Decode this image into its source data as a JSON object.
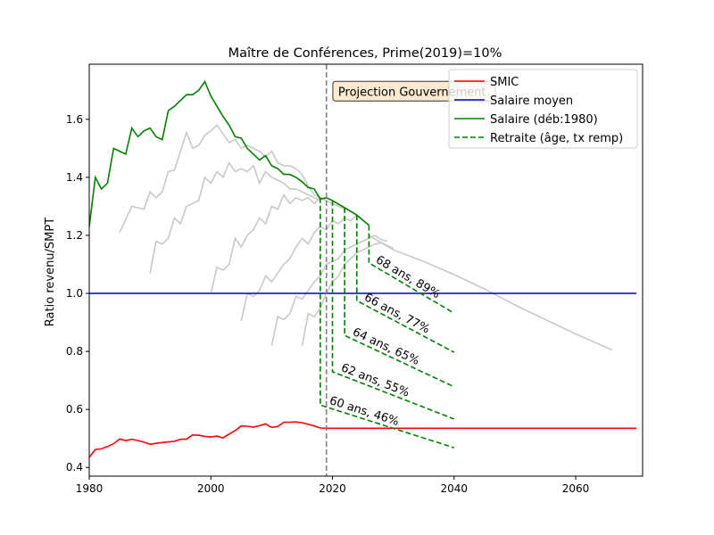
{
  "chart_data": {
    "type": "line",
    "title": "Maître de Conférences, Prime(2019)=10%",
    "xlabel": "",
    "ylabel": "Ratio revenu/SMPT",
    "xlim": [
      1980,
      2071
    ],
    "ylim": [
      0.37,
      1.79
    ],
    "xticks": [
      1980,
      2000,
      2020,
      2040,
      2060
    ],
    "yticks": [
      0.4,
      0.6,
      0.8,
      1.0,
      1.2,
      1.4,
      1.6
    ],
    "grid": false,
    "legend_position": "top-right",
    "annotation": {
      "text": "Projection Gouvernement",
      "x": 2020.5,
      "y": 1.7
    },
    "vline": {
      "x": 2019,
      "color": "#808080"
    },
    "colors": {
      "smic": "#ff0000",
      "salaire_moyen": "#0000bf",
      "salaire": "#008000",
      "retraite": "#008000",
      "cohorts": "#c8c8c8"
    },
    "series": [
      {
        "name": "SMIC",
        "style": "solid",
        "color": "#ff0000",
        "x": [
          1980,
          1981,
          1982,
          1983,
          1984,
          1985,
          1986,
          1987,
          1988,
          1989,
          1990,
          1991,
          1992,
          1993,
          1994,
          1995,
          1996,
          1997,
          1998,
          1999,
          2000,
          2001,
          2002,
          2003,
          2004,
          2005,
          2006,
          2007,
          2008,
          2009,
          2010,
          2011,
          2012,
          2013,
          2014,
          2015,
          2016,
          2017,
          2018,
          2019,
          2020,
          2030,
          2040,
          2050,
          2060,
          2070
        ],
        "y": [
          0.435,
          0.462,
          0.464,
          0.472,
          0.482,
          0.498,
          0.493,
          0.497,
          0.493,
          0.487,
          0.48,
          0.483,
          0.486,
          0.488,
          0.49,
          0.497,
          0.498,
          0.512,
          0.511,
          0.507,
          0.505,
          0.508,
          0.502,
          0.515,
          0.527,
          0.543,
          0.542,
          0.539,
          0.544,
          0.55,
          0.538,
          0.541,
          0.556,
          0.556,
          0.557,
          0.554,
          0.549,
          0.543,
          0.536,
          0.535,
          0.535,
          0.535,
          0.535,
          0.535,
          0.535,
          0.535
        ]
      },
      {
        "name": "Salaire moyen",
        "style": "solid",
        "color": "#0000bf",
        "x": [
          1980,
          2070
        ],
        "y": [
          1.0,
          1.0
        ]
      },
      {
        "name": "Salaire (déb:1980)",
        "style": "solid",
        "color": "#008000",
        "x": [
          1980,
          1981,
          1982,
          1983,
          1984,
          1985,
          1986,
          1987,
          1988,
          1989,
          1990,
          1991,
          1992,
          1993,
          1994,
          1995,
          1996,
          1997,
          1998,
          1999,
          2000,
          2001,
          2002,
          2003,
          2004,
          2005,
          2006,
          2007,
          2008,
          2009,
          2010,
          2011,
          2012,
          2013,
          2014,
          2015,
          2016,
          2017,
          2018,
          2019,
          2020,
          2022,
          2024,
          2026
        ],
        "y": [
          1.23,
          1.4,
          1.36,
          1.38,
          1.5,
          1.49,
          1.48,
          1.57,
          1.54,
          1.56,
          1.57,
          1.54,
          1.53,
          1.63,
          1.645,
          1.665,
          1.685,
          1.685,
          1.7,
          1.73,
          1.68,
          1.645,
          1.61,
          1.58,
          1.54,
          1.535,
          1.5,
          1.48,
          1.46,
          1.475,
          1.44,
          1.43,
          1.41,
          1.41,
          1.4,
          1.385,
          1.365,
          1.36,
          1.325,
          1.33,
          1.32,
          1.295,
          1.27,
          1.235
        ]
      },
      {
        "name": "Retraite (âge, tx remp)",
        "style": "dashed",
        "color": "#008000",
        "x": [],
        "y": []
      }
    ],
    "retirement_lines": [
      {
        "label": "60 ans, 46%",
        "x": [
          2018,
          2018,
          2040
        ],
        "y": [
          1.33,
          0.615,
          0.468
        ]
      },
      {
        "label": "62 ans, 55%",
        "x": [
          2020,
          2020,
          2040
        ],
        "y": [
          1.32,
          0.73,
          0.567
        ]
      },
      {
        "label": "64 ans, 65%",
        "x": [
          2022,
          2022,
          2040
        ],
        "y": [
          1.295,
          0.855,
          0.678
        ]
      },
      {
        "label": "66 ans, 77%",
        "x": [
          2024,
          2024,
          2040
        ],
        "y": [
          1.27,
          0.975,
          0.797
        ]
      },
      {
        "label": "68 ans, 89%",
        "x": [
          2026,
          2026,
          2040
        ],
        "y": [
          1.235,
          1.105,
          0.932
        ]
      }
    ],
    "cohort_lines": [
      {
        "x": [
          1985,
          1987,
          1988,
          1989,
          1990,
          1991,
          1992,
          1993,
          1994,
          1995,
          1996,
          1997,
          1998,
          1999,
          2000,
          2001,
          2002,
          2003,
          2004,
          2005,
          2006,
          2007,
          2008,
          2009,
          2010,
          2011,
          2012,
          2013,
          2014,
          2015,
          2016,
          2017,
          2018
        ],
        "y": [
          1.21,
          1.3,
          1.295,
          1.29,
          1.35,
          1.33,
          1.35,
          1.42,
          1.425,
          1.49,
          1.555,
          1.5,
          1.51,
          1.545,
          1.56,
          1.58,
          1.55,
          1.52,
          1.53,
          1.5,
          1.51,
          1.5,
          1.49,
          1.47,
          1.49,
          1.45,
          1.44,
          1.44,
          1.43,
          1.41,
          1.37,
          1.34,
          1.33
        ]
      },
      {
        "x": [
          1990,
          1991,
          1992,
          1993,
          1994,
          1995,
          1996,
          1997,
          1998,
          1999,
          2000,
          2001,
          2002,
          2003,
          2004,
          2005,
          2006,
          2007,
          2008,
          2009,
          2010,
          2011,
          2012,
          2013,
          2014,
          2015,
          2016,
          2017,
          2018
        ],
        "y": [
          1.07,
          1.18,
          1.17,
          1.19,
          1.26,
          1.24,
          1.3,
          1.31,
          1.32,
          1.4,
          1.38,
          1.42,
          1.4,
          1.45,
          1.42,
          1.43,
          1.42,
          1.44,
          1.38,
          1.42,
          1.4,
          1.39,
          1.38,
          1.36,
          1.36,
          1.35,
          1.34,
          1.33,
          1.32
        ]
      },
      {
        "x": [
          2000,
          2001,
          2002,
          2003,
          2004,
          2005,
          2006,
          2007,
          2008,
          2009,
          2010,
          2011,
          2012,
          2013,
          2014,
          2015,
          2016,
          2017,
          2018,
          2019,
          2020,
          2022
        ],
        "y": [
          1.0,
          1.09,
          1.08,
          1.1,
          1.19,
          1.16,
          1.2,
          1.22,
          1.26,
          1.24,
          1.3,
          1.29,
          1.34,
          1.31,
          1.33,
          1.32,
          1.33,
          1.31,
          1.33,
          1.32,
          1.31,
          1.29
        ]
      },
      {
        "x": [
          2005,
          2006,
          2007,
          2008,
          2009,
          2010,
          2011,
          2012,
          2013,
          2014,
          2015,
          2016,
          2017,
          2018,
          2019,
          2020,
          2021,
          2022,
          2023,
          2024
        ],
        "y": [
          0.905,
          1.0,
          0.99,
          1.01,
          1.06,
          1.04,
          1.07,
          1.1,
          1.12,
          1.16,
          1.19,
          1.17,
          1.21,
          1.23,
          1.22,
          1.25,
          1.24,
          1.26,
          1.25,
          1.27
        ]
      },
      {
        "x": [
          2010,
          2011,
          2012,
          2013,
          2014,
          2015,
          2016,
          2017,
          2018,
          2019,
          2020,
          2021,
          2022,
          2023,
          2024,
          2025,
          2026,
          2027,
          2028,
          2029
        ],
        "y": [
          0.82,
          0.92,
          0.91,
          0.93,
          0.99,
          0.98,
          1.01,
          1.04,
          1.06,
          1.1,
          1.11,
          1.12,
          1.15,
          1.16,
          1.17,
          1.18,
          1.19,
          1.2,
          1.185,
          1.18
        ]
      },
      {
        "x": [
          2015,
          2016,
          2017,
          2018,
          2019,
          2020,
          2021,
          2022,
          2023,
          2024,
          2025,
          2026,
          2027,
          2028,
          2029,
          2030
        ],
        "y": [
          0.82,
          0.93,
          0.92,
          0.95,
          1.0,
          1.04,
          1.06,
          1.1,
          1.12,
          1.14,
          1.15,
          1.16,
          1.17,
          1.175,
          1.165,
          1.155
        ]
      },
      {
        "x": [
          2026,
          2030,
          2035,
          2040,
          2045,
          2050,
          2055,
          2060,
          2066
        ],
        "y": [
          1.2,
          1.15,
          1.11,
          1.065,
          1.015,
          0.96,
          0.91,
          0.86,
          0.805
        ]
      }
    ]
  }
}
